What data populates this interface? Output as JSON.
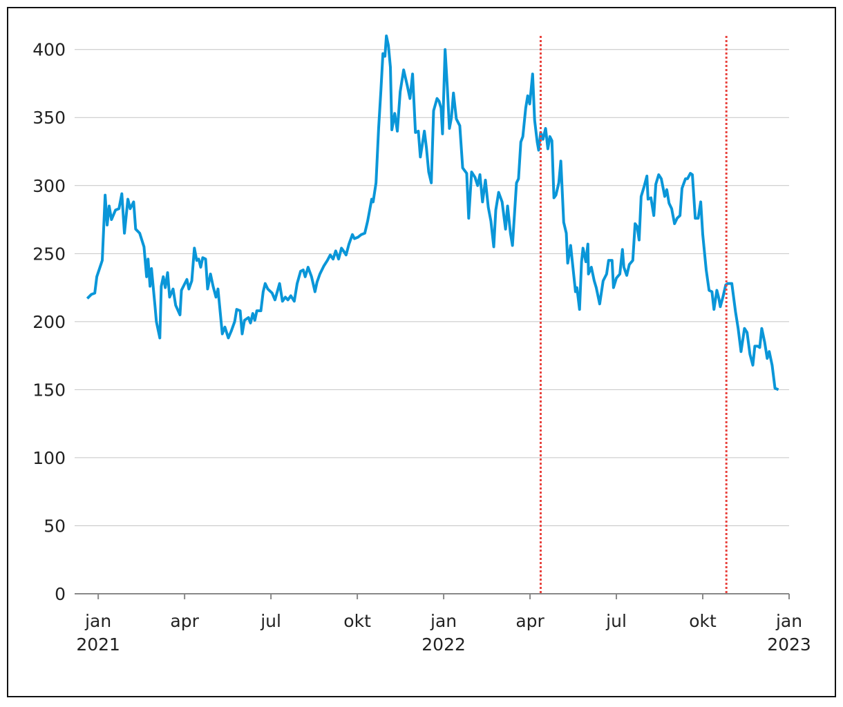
{
  "chart_data": {
    "type": "line",
    "x": [
      -0.38,
      -0.24,
      -0.12,
      -0.05,
      0.14,
      0.24,
      0.31,
      0.38,
      0.46,
      0.6,
      0.72,
      0.82,
      0.91,
      1.03,
      1.11,
      1.23,
      1.3,
      1.44,
      1.59,
      1.68,
      1.73,
      1.8,
      1.85,
      1.97,
      2.02,
      2.14,
      2.19,
      2.26,
      2.33,
      2.41,
      2.48,
      2.6,
      2.69,
      2.84,
      2.89,
      3.08,
      3.15,
      3.25,
      3.34,
      3.42,
      3.49,
      3.56,
      3.63,
      3.73,
      3.8,
      3.9,
      3.99,
      4.09,
      4.16,
      4.31,
      4.4,
      4.52,
      4.62,
      4.74,
      4.81,
      4.93,
      5.0,
      5.08,
      5.22,
      5.29,
      5.37,
      5.44,
      5.51,
      5.65,
      5.73,
      5.8,
      5.89,
      6.04,
      6.14,
      6.3,
      6.4,
      6.5,
      6.59,
      6.69,
      6.81,
      6.91,
      7.03,
      7.12,
      7.19,
      7.29,
      7.41,
      7.53,
      7.6,
      7.7,
      7.84,
      7.96,
      8.06,
      8.16,
      8.25,
      8.35,
      8.45,
      8.52,
      8.61,
      8.71,
      8.83,
      8.9,
      9.02,
      9.14,
      9.26,
      9.36,
      9.5,
      9.55,
      9.65,
      9.74,
      9.82,
      9.89,
      9.96,
      10.01,
      10.08,
      10.15,
      10.2,
      10.3,
      10.39,
      10.49,
      10.61,
      10.73,
      10.83,
      10.92,
      11.02,
      11.12,
      11.19,
      11.33,
      11.4,
      11.48,
      11.57,
      11.65,
      11.77,
      11.84,
      11.91,
      11.96,
      12.05,
      12.13,
      12.2,
      12.27,
      12.34,
      12.44,
      12.56,
      12.66,
      12.8,
      12.87,
      12.97,
      13.09,
      13.18,
      13.26,
      13.35,
      13.45,
      13.55,
      13.64,
      13.74,
      13.81,
      13.91,
      14.03,
      14.15,
      14.22,
      14.32,
      14.39,
      14.53,
      14.6,
      14.68,
      14.75,
      14.85,
      14.92,
      14.99,
      15.09,
      15.16,
      15.25,
      15.3,
      15.37,
      15.45,
      15.54,
      15.62,
      15.69,
      15.76,
      15.83,
      15.9,
      16.0,
      16.07,
      16.17,
      16.26,
      16.31,
      16.41,
      16.48,
      16.58,
      16.63,
      16.72,
      16.79,
      16.84,
      16.94,
      17.01,
      17.03,
      17.13,
      17.23,
      17.3,
      17.42,
      17.54,
      17.66,
      17.73,
      17.85,
      17.9,
      18.0,
      18.12,
      18.21,
      18.26,
      18.36,
      18.45,
      18.57,
      18.65,
      18.72,
      18.79,
      18.86,
      18.96,
      19.06,
      19.1,
      19.2,
      19.3,
      19.37,
      19.47,
      19.56,
      19.68,
      19.75,
      19.83,
      19.92,
      20.02,
      20.11,
      20.21,
      20.28,
      20.4,
      20.47,
      20.57,
      20.64,
      20.74,
      20.84,
      20.93,
      21.0,
      21.12,
      21.22,
      21.32,
      21.39,
      21.49,
      21.56,
      21.61,
      21.7,
      21.8,
      21.87,
      22.01,
      22.14,
      22.23,
      22.33,
      22.45,
      22.54,
      22.64,
      22.74,
      22.81,
      22.91,
      22.98,
      23.05,
      23.15,
      23.24,
      23.31,
      23.41,
      23.51,
      23.63
    ],
    "series": [
      {
        "color": "#0a96d8",
        "values": [
          217,
          220,
          221,
          233,
          245,
          293,
          271,
          285,
          275,
          282,
          283,
          294,
          265,
          290,
          283,
          288,
          268,
          265,
          255,
          233,
          246,
          226,
          239,
          212,
          200,
          188,
          226,
          233,
          225,
          236,
          218,
          224,
          212,
          205,
          223,
          231,
          224,
          230,
          254,
          245,
          246,
          240,
          247,
          246,
          224,
          235,
          226,
          218,
          224,
          191,
          196,
          188,
          193,
          200,
          209,
          208,
          191,
          201,
          203,
          199,
          206,
          201,
          208,
          208,
          222,
          228,
          224,
          221,
          216,
          228,
          215,
          218,
          216,
          219,
          215,
          228,
          237,
          238,
          233,
          240,
          233,
          222,
          229,
          235,
          241,
          245,
          249,
          246,
          252,
          246,
          254,
          252,
          249,
          257,
          264,
          261,
          262,
          264,
          265,
          274,
          290,
          288,
          302,
          342,
          370,
          397,
          395,
          410,
          403,
          387,
          341,
          353,
          340,
          369,
          385,
          374,
          364,
          382,
          339,
          340,
          321,
          340,
          328,
          310,
          302,
          355,
          364,
          362,
          357,
          338,
          400,
          371,
          342,
          350,
          368,
          349,
          344,
          313,
          309,
          276,
          310,
          306,
          300,
          308,
          288,
          304,
          284,
          274,
          255,
          282,
          295,
          288,
          268,
          285,
          265,
          256,
          302,
          305,
          332,
          336,
          357,
          366,
          360,
          382,
          348,
          332,
          326,
          339,
          334,
          342,
          327,
          336,
          333,
          291,
          293,
          302,
          318,
          273,
          265,
          243,
          256,
          242,
          222,
          225,
          209,
          244,
          254,
          244,
          257,
          235,
          240,
          230,
          225,
          213,
          230,
          235,
          245,
          245,
          225,
          232,
          235,
          253,
          240,
          234,
          242,
          245,
          272,
          270,
          260,
          292,
          299,
          307,
          290,
          291,
          278,
          301,
          308,
          305,
          292,
          297,
          287,
          283,
          272,
          276,
          278,
          298,
          305,
          305,
          309,
          308,
          276,
          276,
          288,
          264,
          238,
          223,
          222,
          209,
          223,
          217,
          211,
          218,
          227,
          228,
          228,
          207,
          195,
          178,
          195,
          192,
          176,
          168,
          182,
          182,
          181,
          195,
          185,
          173,
          178,
          168,
          151,
          150
        ]
      }
    ],
    "reference_lines": [
      {
        "x": 15.37,
        "color": "#e8413c"
      },
      {
        "x": 21.82,
        "color": "#e8413c"
      }
    ],
    "xlim": [
      -0.82,
      24
    ],
    "xticks": [
      {
        "value": 0,
        "label": "jan 2021"
      },
      {
        "value": 3,
        "label": "apr"
      },
      {
        "value": 6,
        "label": "jul"
      },
      {
        "value": 9,
        "label": "okt"
      },
      {
        "value": 12,
        "label": "jan 2022"
      },
      {
        "value": 15,
        "label": "apr"
      },
      {
        "value": 18,
        "label": "jul"
      },
      {
        "value": 21,
        "label": "okt"
      },
      {
        "value": 24,
        "label": "jan 2023"
      }
    ],
    "ylim": [
      0,
      410
    ],
    "yticks": [
      0,
      50,
      100,
      150,
      200,
      250,
      300,
      350,
      400
    ],
    "grid": true
  }
}
